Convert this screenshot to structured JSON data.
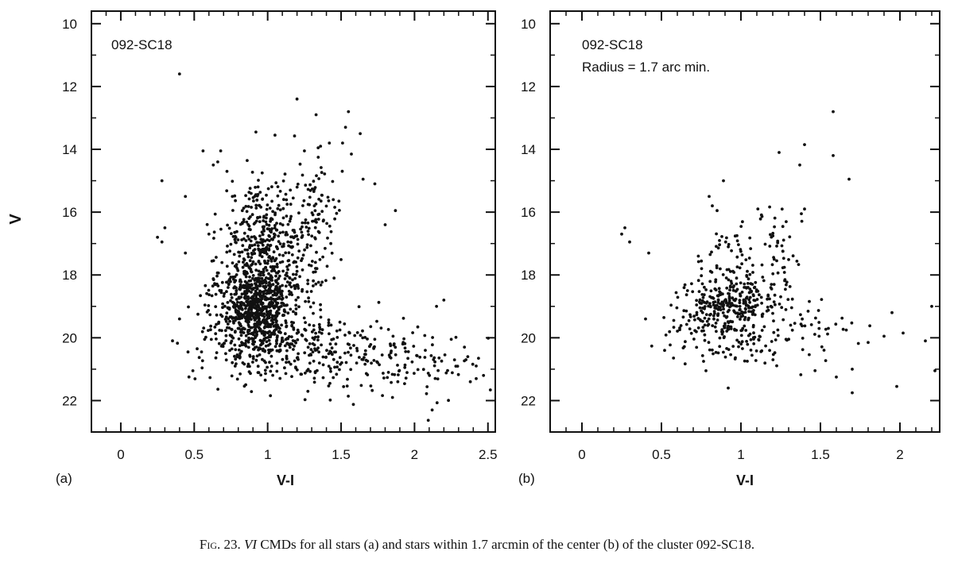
{
  "caption": {
    "prefix": "Fig. 23.",
    "emph": "VI",
    "text": " CMDs for all stars (a) and stars within 1.7 arcmin of the center (b) of the cluster 092-SC18."
  },
  "chart_data": [
    {
      "type": "scatter",
      "panel_label": "(a)",
      "annotations": [
        "092-SC18"
      ],
      "xlabel": "V-I",
      "ylabel": "V",
      "xlim": [
        -0.2,
        2.55
      ],
      "ylim": [
        23,
        9.6
      ],
      "y_inverted": true,
      "xticks": [
        0,
        0.5,
        1,
        1.5,
        2,
        2.5
      ],
      "xtick_labels": [
        "0",
        "0.5",
        "1",
        "1.5",
        "2",
        "2.5"
      ],
      "yticks": [
        10,
        12,
        14,
        16,
        18,
        20,
        22
      ],
      "ytick_labels": [
        "10",
        "12",
        "14",
        "16",
        "18",
        "20",
        "22"
      ],
      "grid": false,
      "series": [
        {
          "clusters": [
            {
              "x": 0.92,
              "y": 19.1,
              "sx": 0.11,
              "sy": 0.7,
              "n": 600
            },
            {
              "x": 1.02,
              "y": 18.0,
              "sx": 0.17,
              "sy": 1.1,
              "n": 350
            },
            {
              "x": 0.95,
              "y": 16.5,
              "sx": 0.11,
              "sy": 0.8,
              "n": 160
            },
            {
              "x": 1.3,
              "y": 16.2,
              "sx": 0.09,
              "sy": 1.0,
              "n": 110
            },
            {
              "x": 1.12,
              "y": 20.3,
              "sx": 0.3,
              "sy": 0.6,
              "n": 250
            },
            {
              "x": 1.7,
              "y": 20.6,
              "sx": 0.25,
              "sy": 0.55,
              "n": 120
            },
            {
              "x": 0.7,
              "y": 19.2,
              "sx": 0.1,
              "sy": 0.8,
              "n": 60
            },
            {
              "x": 2.1,
              "y": 20.8,
              "sx": 0.2,
              "sy": 0.55,
              "n": 40
            }
          ],
          "points": [
            [
              0.4,
              11.6
            ],
            [
              1.2,
              12.4
            ],
            [
              1.55,
              12.8
            ],
            [
              0.92,
              13.45
            ],
            [
              1.05,
              13.55
            ],
            [
              1.53,
              13.3
            ],
            [
              1.63,
              13.5
            ],
            [
              1.36,
              13.9
            ],
            [
              1.42,
              13.8
            ],
            [
              0.56,
              14.05
            ],
            [
              0.68,
              14.05
            ],
            [
              1.25,
              14.05
            ],
            [
              0.63,
              14.5
            ],
            [
              0.66,
              14.4
            ],
            [
              0.28,
              15.0
            ],
            [
              1.65,
              14.95
            ],
            [
              1.73,
              15.1
            ],
            [
              0.44,
              15.5
            ],
            [
              1.57,
              14.15
            ],
            [
              0.3,
              16.5
            ],
            [
              0.25,
              16.8
            ],
            [
              0.28,
              16.95
            ],
            [
              1.8,
              16.4
            ],
            [
              1.87,
              15.95
            ],
            [
              0.44,
              17.3
            ],
            [
              0.4,
              19.4
            ],
            [
              0.52,
              20.35
            ],
            [
              0.55,
              20.45
            ],
            [
              2.12,
              22.3
            ],
            [
              1.85,
              21.9
            ],
            [
              2.42,
              20.9
            ],
            [
              2.47,
              21.2
            ],
            [
              2.38,
              21.4
            ],
            [
              2.2,
              18.8
            ],
            [
              2.15,
              19.0
            ],
            [
              2.35,
              20.7
            ],
            [
              2.42,
              21.3
            ],
            [
              0.6,
              16.7
            ],
            [
              1.33,
              12.9
            ],
            [
              1.51,
              13.8
            ]
          ]
        }
      ]
    },
    {
      "type": "scatter",
      "panel_label": "(b)",
      "annotations": [
        "092-SC18",
        "Radius = 1.7 arc min."
      ],
      "xlabel": "V-I",
      "ylabel": "",
      "xlim": [
        -0.2,
        2.25
      ],
      "ylim": [
        23,
        9.6
      ],
      "y_inverted": true,
      "xticks": [
        0,
        0.5,
        1,
        1.5,
        2
      ],
      "xtick_labels": [
        "0",
        "0.5",
        "1",
        "1.5",
        "2"
      ],
      "yticks": [
        10,
        12,
        14,
        16,
        18,
        20,
        22
      ],
      "ytick_labels": [
        "10",
        "12",
        "14",
        "16",
        "18",
        "20",
        "22"
      ],
      "grid": false,
      "series": [
        {
          "clusters": [
            {
              "x": 0.88,
              "y": 19.0,
              "sx": 0.12,
              "sy": 0.5,
              "n": 230
            },
            {
              "x": 1.08,
              "y": 18.6,
              "sx": 0.14,
              "sy": 0.5,
              "n": 90
            },
            {
              "x": 0.95,
              "y": 17.3,
              "sx": 0.12,
              "sy": 0.6,
              "n": 45
            },
            {
              "x": 1.27,
              "y": 17.4,
              "sx": 0.07,
              "sy": 0.9,
              "n": 40
            },
            {
              "x": 1.02,
              "y": 20.1,
              "sx": 0.22,
              "sy": 0.45,
              "n": 80
            },
            {
              "x": 1.45,
              "y": 19.7,
              "sx": 0.15,
              "sy": 0.6,
              "n": 30
            },
            {
              "x": 0.65,
              "y": 19.5,
              "sx": 0.08,
              "sy": 0.6,
              "n": 25
            }
          ],
          "points": [
            [
              1.58,
              12.8
            ],
            [
              1.58,
              14.2
            ],
            [
              1.24,
              14.1
            ],
            [
              1.4,
              13.85
            ],
            [
              1.68,
              14.95
            ],
            [
              1.37,
              14.5
            ],
            [
              0.89,
              15.0
            ],
            [
              0.8,
              15.5
            ],
            [
              0.82,
              15.8
            ],
            [
              0.85,
              15.95
            ],
            [
              0.25,
              16.7
            ],
            [
              0.27,
              16.5
            ],
            [
              0.3,
              16.95
            ],
            [
              0.42,
              17.3
            ],
            [
              0.4,
              19.4
            ],
            [
              0.52,
              20.4
            ],
            [
              0.78,
              21.05
            ],
            [
              0.92,
              21.6
            ],
            [
              1.8,
              20.15
            ],
            [
              1.9,
              19.95
            ],
            [
              1.95,
              19.2
            ],
            [
              2.02,
              19.85
            ],
            [
              2.2,
              19.0
            ],
            [
              2.16,
              20.1
            ],
            [
              2.22,
              21.05
            ],
            [
              1.98,
              21.55
            ],
            [
              1.7,
              21.75
            ],
            [
              1.7,
              21.0
            ],
            [
              1.6,
              21.25
            ],
            [
              1.55,
              19.7
            ],
            [
              1.38,
              16.05
            ],
            [
              1.4,
              15.9
            ]
          ]
        }
      ]
    }
  ]
}
